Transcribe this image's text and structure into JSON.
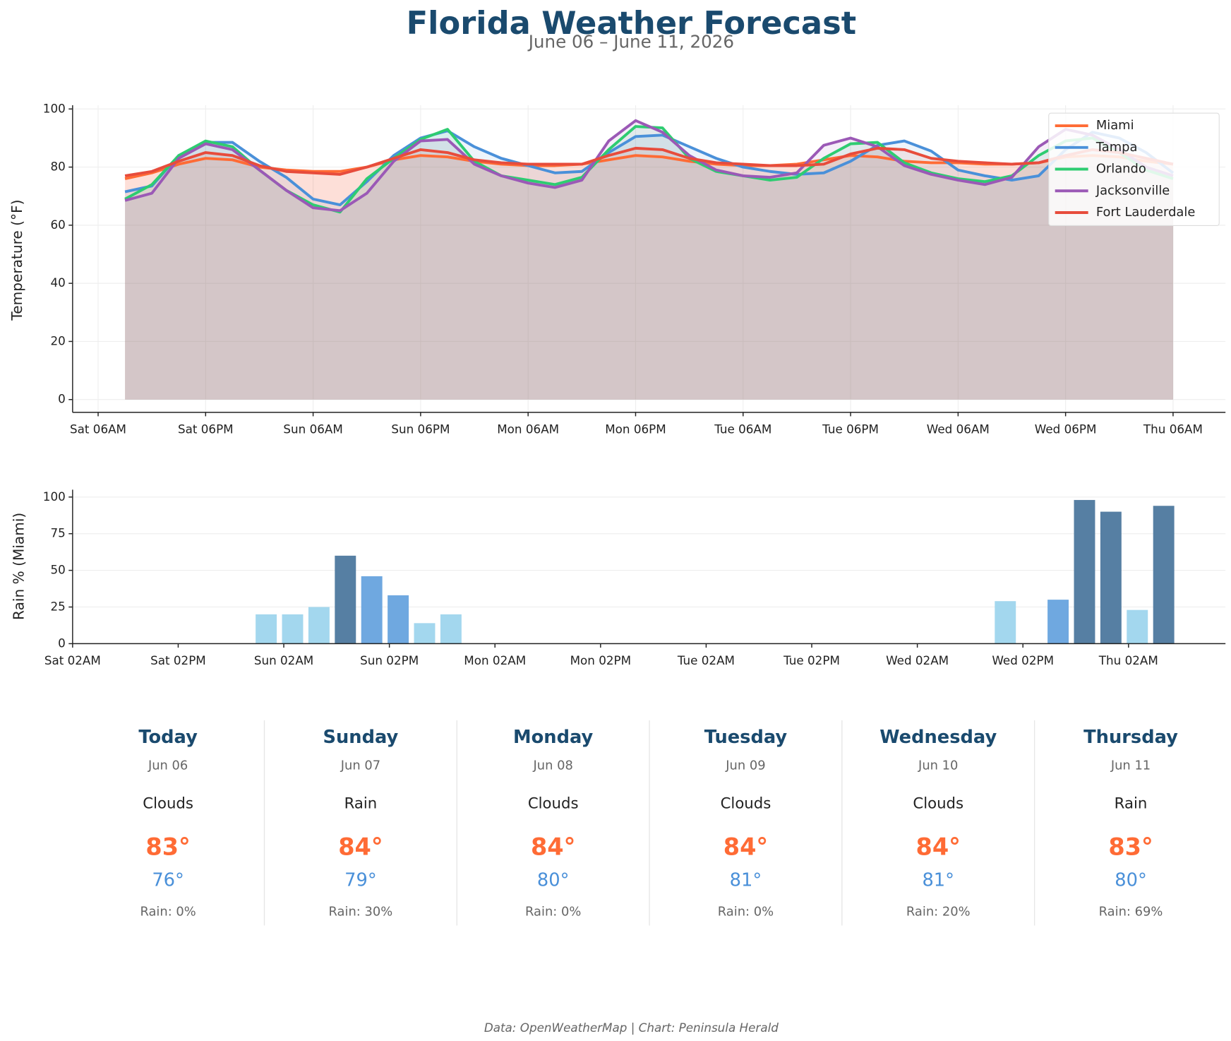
{
  "title": "Florida Weather Forecast",
  "subtitle": "June 06 – June 11, 2026",
  "chart_data": [
    {
      "type": "line",
      "ylabel": "Temperature (°F)",
      "x": [
        "Sat 09AM",
        "Sat 12PM",
        "Sat 03PM",
        "Sat 06PM",
        "Sat 09PM",
        "Sun 12AM",
        "Sun 03AM",
        "Sun 06AM",
        "Sun 09AM",
        "Sun 12PM",
        "Sun 03PM",
        "Sun 06PM",
        "Sun 09PM",
        "Mon 12AM",
        "Mon 03AM",
        "Mon 06AM",
        "Mon 09AM",
        "Mon 12PM",
        "Mon 03PM",
        "Mon 06PM",
        "Mon 09PM",
        "Tue 12AM",
        "Tue 03AM",
        "Tue 06AM",
        "Tue 09AM",
        "Tue 12PM",
        "Tue 03PM",
        "Tue 06PM",
        "Tue 09PM",
        "Wed 12AM",
        "Wed 03AM",
        "Wed 06AM",
        "Wed 09AM",
        "Wed 12PM",
        "Wed 03PM",
        "Wed 06PM",
        "Wed 09PM",
        "Thu 12AM",
        "Thu 03AM",
        "Thu 06AM"
      ],
      "series": [
        {
          "name": "Miami",
          "color": "#ff6b35",
          "values": [
            76,
            78,
            81,
            83,
            82.5,
            80,
            79,
            78.5,
            78.5,
            80,
            82.5,
            84,
            83.5,
            82,
            81,
            80.5,
            80.5,
            81,
            82.5,
            84,
            83.5,
            82,
            81,
            80.5,
            80.5,
            81,
            82.5,
            84,
            83.5,
            82,
            81.5,
            81.5,
            81,
            81,
            81.5,
            83.5,
            84,
            83.5,
            82,
            81
          ]
        },
        {
          "name": "Tampa",
          "color": "#4a90d9",
          "values": [
            71.5,
            73.5,
            84,
            88.5,
            88.5,
            82,
            76.5,
            69,
            67,
            75,
            84,
            90,
            92.5,
            87,
            83,
            80.5,
            78,
            78.5,
            85,
            90.5,
            91,
            87,
            83,
            80,
            78.5,
            77.5,
            78,
            82,
            87.5,
            89,
            85.5,
            79,
            77,
            75.5,
            77,
            86,
            92,
            90,
            85,
            78
          ]
        },
        {
          "name": "Orlando",
          "color": "#2ecc71",
          "values": [
            69,
            74,
            84,
            89,
            87,
            79,
            72,
            67,
            64.5,
            76,
            83,
            89.5,
            93,
            82,
            77,
            75.5,
            74,
            76.5,
            86,
            94,
            93.5,
            83,
            78.5,
            77,
            75.5,
            76.5,
            83,
            88,
            88.5,
            81.5,
            78,
            76,
            75,
            77,
            84,
            89,
            90,
            85,
            79,
            76
          ]
        },
        {
          "name": "Jacksonville",
          "color": "#9b59b6",
          "values": [
            68.5,
            71,
            83,
            88,
            86,
            79,
            72,
            66,
            65,
            71,
            82,
            89,
            89.5,
            81,
            77,
            74.5,
            73,
            75.5,
            89,
            96,
            92,
            84,
            79,
            77,
            76.5,
            78,
            87.5,
            90,
            87,
            80.5,
            77.5,
            75.5,
            74,
            76.5,
            87,
            93,
            91,
            86,
            80,
            77
          ]
        },
        {
          "name": "Fort Lauderdale",
          "color": "#e74c3c",
          "values": [
            77,
            78.5,
            82,
            85,
            84,
            80.5,
            78.5,
            78,
            77.5,
            80,
            83,
            86,
            85,
            82.5,
            81.5,
            81,
            81,
            81,
            84,
            86.5,
            86,
            83,
            81.5,
            81,
            80.5,
            80.5,
            81,
            84.5,
            86.5,
            86,
            83,
            82,
            81.5,
            81,
            81.5,
            84,
            86,
            85,
            83,
            81
          ]
        }
      ],
      "ylim": [
        -4.4,
        101.3
      ],
      "yticks": [
        0,
        20,
        40,
        60,
        80,
        100
      ],
      "xticks": [
        "Sat 06AM",
        "Sat 06PM",
        "Sun 06AM",
        "Sun 06PM",
        "Mon 06AM",
        "Mon 06PM",
        "Tue 06AM",
        "Tue 06PM",
        "Wed 06AM",
        "Wed 06PM",
        "Thu 06AM"
      ],
      "grid": true,
      "legend": "upper right"
    },
    {
      "type": "bar",
      "ylabel": "Rain % (Miami)",
      "x": [
        "Sat 09AM",
        "Sat 12PM",
        "Sat 03PM",
        "Sat 06PM",
        "Sat 09PM",
        "Sun 12AM",
        "Sun 03AM",
        "Sun 06AM",
        "Sun 09AM",
        "Sun 12PM",
        "Sun 03PM",
        "Sun 06PM",
        "Sun 09PM",
        "Mon 12AM",
        "Mon 03AM",
        "Mon 06AM",
        "Mon 09AM",
        "Mon 12PM",
        "Mon 03PM",
        "Mon 06PM",
        "Mon 09PM",
        "Tue 12AM",
        "Tue 03AM",
        "Tue 06AM",
        "Tue 09AM",
        "Tue 12PM",
        "Tue 03PM",
        "Tue 06PM",
        "Tue 09PM",
        "Wed 12AM",
        "Wed 03AM",
        "Wed 06AM",
        "Wed 09AM",
        "Wed 12PM",
        "Wed 03PM",
        "Wed 06PM",
        "Wed 09PM",
        "Thu 12AM",
        "Thu 03AM",
        "Thu 06AM"
      ],
      "values": [
        0,
        0,
        0,
        0,
        0,
        20,
        20,
        25,
        60,
        46,
        33,
        14,
        20,
        0,
        0,
        0,
        0,
        0,
        0,
        0,
        0,
        0,
        0,
        0,
        0,
        0,
        0,
        0,
        0,
        0,
        0,
        0,
        0,
        29,
        0,
        30,
        98,
        90,
        23,
        94
      ],
      "colors": [
        "#a3d7ee",
        "#a3d7ee",
        "#a3d7ee",
        "#a3d7ee",
        "#a3d7ee",
        "#a3d7ee",
        "#a3d7ee",
        "#a3d7ee",
        "#567fa3",
        "#6fa8e0",
        "#6fa8e0",
        "#a3d7ee",
        "#a3d7ee",
        "#a3d7ee",
        "#a3d7ee",
        "#a3d7ee",
        "#a3d7ee",
        "#a3d7ee",
        "#a3d7ee",
        "#a3d7ee",
        "#a3d7ee",
        "#a3d7ee",
        "#a3d7ee",
        "#a3d7ee",
        "#a3d7ee",
        "#a3d7ee",
        "#a3d7ee",
        "#a3d7ee",
        "#a3d7ee",
        "#a3d7ee",
        "#a3d7ee",
        "#a3d7ee",
        "#a3d7ee",
        "#a3d7ee",
        "#a3d7ee",
        "#6fa8e0",
        "#567fa3",
        "#567fa3",
        "#a3d7ee",
        "#567fa3"
      ],
      "ylim": [
        0,
        105
      ],
      "yticks": [
        0,
        25,
        50,
        75,
        100
      ],
      "xticks": [
        "Sat 02AM",
        "Sat 02PM",
        "Sun 02AM",
        "Sun 02PM",
        "Mon 02AM",
        "Mon 02PM",
        "Tue 02AM",
        "Tue 02PM",
        "Wed 02AM",
        "Wed 02PM",
        "Thu 02AM"
      ],
      "grid": "y"
    }
  ],
  "daily": [
    {
      "day": "Today",
      "date": "Jun 06",
      "condition": "Clouds",
      "high": "83°",
      "low": "76°",
      "rain": "Rain: 0%"
    },
    {
      "day": "Sunday",
      "date": "Jun 07",
      "condition": "Rain",
      "high": "84°",
      "low": "79°",
      "rain": "Rain: 30%"
    },
    {
      "day": "Monday",
      "date": "Jun 08",
      "condition": "Clouds",
      "high": "84°",
      "low": "80°",
      "rain": "Rain: 0%"
    },
    {
      "day": "Tuesday",
      "date": "Jun 09",
      "condition": "Clouds",
      "high": "84°",
      "low": "81°",
      "rain": "Rain: 0%"
    },
    {
      "day": "Wednesday",
      "date": "Jun 10",
      "condition": "Clouds",
      "high": "84°",
      "low": "81°",
      "rain": "Rain: 20%"
    },
    {
      "day": "Thursday",
      "date": "Jun 11",
      "condition": "Rain",
      "high": "83°",
      "low": "80°",
      "rain": "Rain: 69%"
    }
  ],
  "footer": "Data: OpenWeatherMap | Chart: Peninsula Herald"
}
